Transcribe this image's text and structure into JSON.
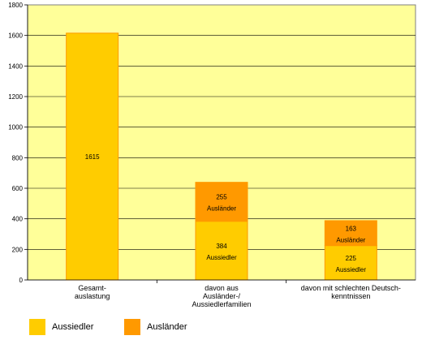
{
  "chart_data": {
    "type": "bar",
    "stacked": true,
    "categories": [
      [
        "Gesamt-",
        "auslastung"
      ],
      [
        "davon aus",
        "Ausländer-/",
        "Aussiedlerfamilien"
      ],
      [
        "davon mit schlechten Deutsch-",
        "kenntnissen"
      ]
    ],
    "series": [
      {
        "name": "Aussiedler",
        "values": [
          1615,
          384,
          225
        ],
        "labels": [
          "1615",
          "384",
          "225"
        ],
        "sublabels": [
          "",
          "Aussiedler",
          "Aussiedler"
        ],
        "color": "#FFCC00"
      },
      {
        "name": "Ausländer",
        "values": [
          0,
          255,
          163
        ],
        "labels": [
          "",
          "255",
          "163"
        ],
        "sublabels": [
          "",
          "Ausländer",
          "Ausländer"
        ],
        "color": "#FF9900"
      }
    ],
    "yticks": [
      "0",
      "200",
      "400",
      "600",
      "800",
      "1000",
      "1200",
      "1400",
      "1600",
      "1800"
    ],
    "ylim": [
      0,
      1800
    ],
    "plot_background": "#FFFF99",
    "grid": true,
    "legend_position": "bottom-left"
  }
}
